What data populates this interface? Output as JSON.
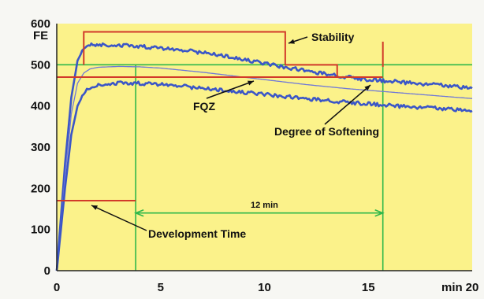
{
  "chart_data": {
    "type": "line",
    "title": "",
    "xlabel": "min",
    "ylabel": "FE",
    "xlim": [
      0,
      20
    ],
    "ylim": [
      0,
      600
    ],
    "xticks": [
      0,
      5,
      10,
      15,
      20
    ],
    "yticks": [
      0,
      100,
      200,
      300,
      400,
      500,
      600
    ],
    "grid": false,
    "colors": {
      "plot_background": "#fbf28a",
      "curve": "#3b56c7",
      "mean_curve": "#6f78d8",
      "red_markers": "#d23a2a",
      "green_lines": "#2fb84a"
    },
    "series": [
      {
        "role": "upper-band",
        "x": [
          0,
          0.4,
          0.7,
          1.0,
          1.3,
          1.6,
          2.0,
          3.0,
          4.0,
          5.0,
          6.0,
          7.0,
          8.0,
          9.0,
          10.0,
          11.0,
          12.0,
          13.0,
          14.0,
          15.0,
          16.0,
          17.0,
          18.0,
          19.0,
          20.0
        ],
        "y": [
          0,
          260,
          420,
          510,
          540,
          548,
          548,
          548,
          545,
          540,
          535,
          530,
          522,
          513,
          503,
          494,
          486,
          477,
          470,
          464,
          460,
          456,
          452,
          448,
          443
        ]
      },
      {
        "role": "mean",
        "x": [
          0,
          0.4,
          0.7,
          1.0,
          1.3,
          1.6,
          2.0,
          3.0,
          4.0,
          5.0,
          6.0,
          7.0,
          8.0,
          9.0,
          10.0,
          11.0,
          12.0,
          13.0,
          14.0,
          15.0,
          16.0,
          17.0,
          18.0,
          19.0,
          20.0
        ],
        "y": [
          0,
          230,
          380,
          455,
          480,
          490,
          494,
          496,
          495,
          492,
          487,
          482,
          476,
          470,
          464,
          458,
          452,
          447,
          442,
          438,
          434,
          430,
          426,
          422,
          418
        ]
      },
      {
        "role": "lower-band",
        "x": [
          0,
          0.4,
          0.7,
          1.0,
          1.3,
          1.6,
          2.0,
          3.0,
          4.0,
          5.0,
          6.0,
          7.0,
          8.0,
          9.0,
          10.0,
          11.0,
          12.0,
          13.0,
          14.0,
          15.0,
          16.0,
          17.0,
          18.0,
          19.0,
          20.0
        ],
        "y": [
          0,
          200,
          330,
          400,
          430,
          445,
          452,
          456,
          455,
          452,
          448,
          443,
          438,
          433,
          428,
          423,
          418,
          413,
          409,
          405,
          401,
          398,
          395,
          392,
          388
        ]
      }
    ],
    "annotations": {
      "stability": "Stability",
      "fqz": "FQZ",
      "degree_of_softening": "Degree of Softening",
      "twelve_min": "12 min",
      "development_time": "Development Time"
    },
    "markers": {
      "stability_bracket": {
        "x_start": 1.3,
        "x_end": 11.0,
        "y_top": 580,
        "y_base": 500
      },
      "stability_step": {
        "x": 13.5,
        "y": 500
      },
      "softening_step": {
        "x": 15.7,
        "y": 495
      },
      "development_time": {
        "x": 3.8,
        "y": 170
      },
      "fe_500_line": 500,
      "fe_470_line": 470,
      "twelve_min_span": {
        "x_start": 3.8,
        "x_end": 15.7,
        "y": 140
      }
    }
  }
}
